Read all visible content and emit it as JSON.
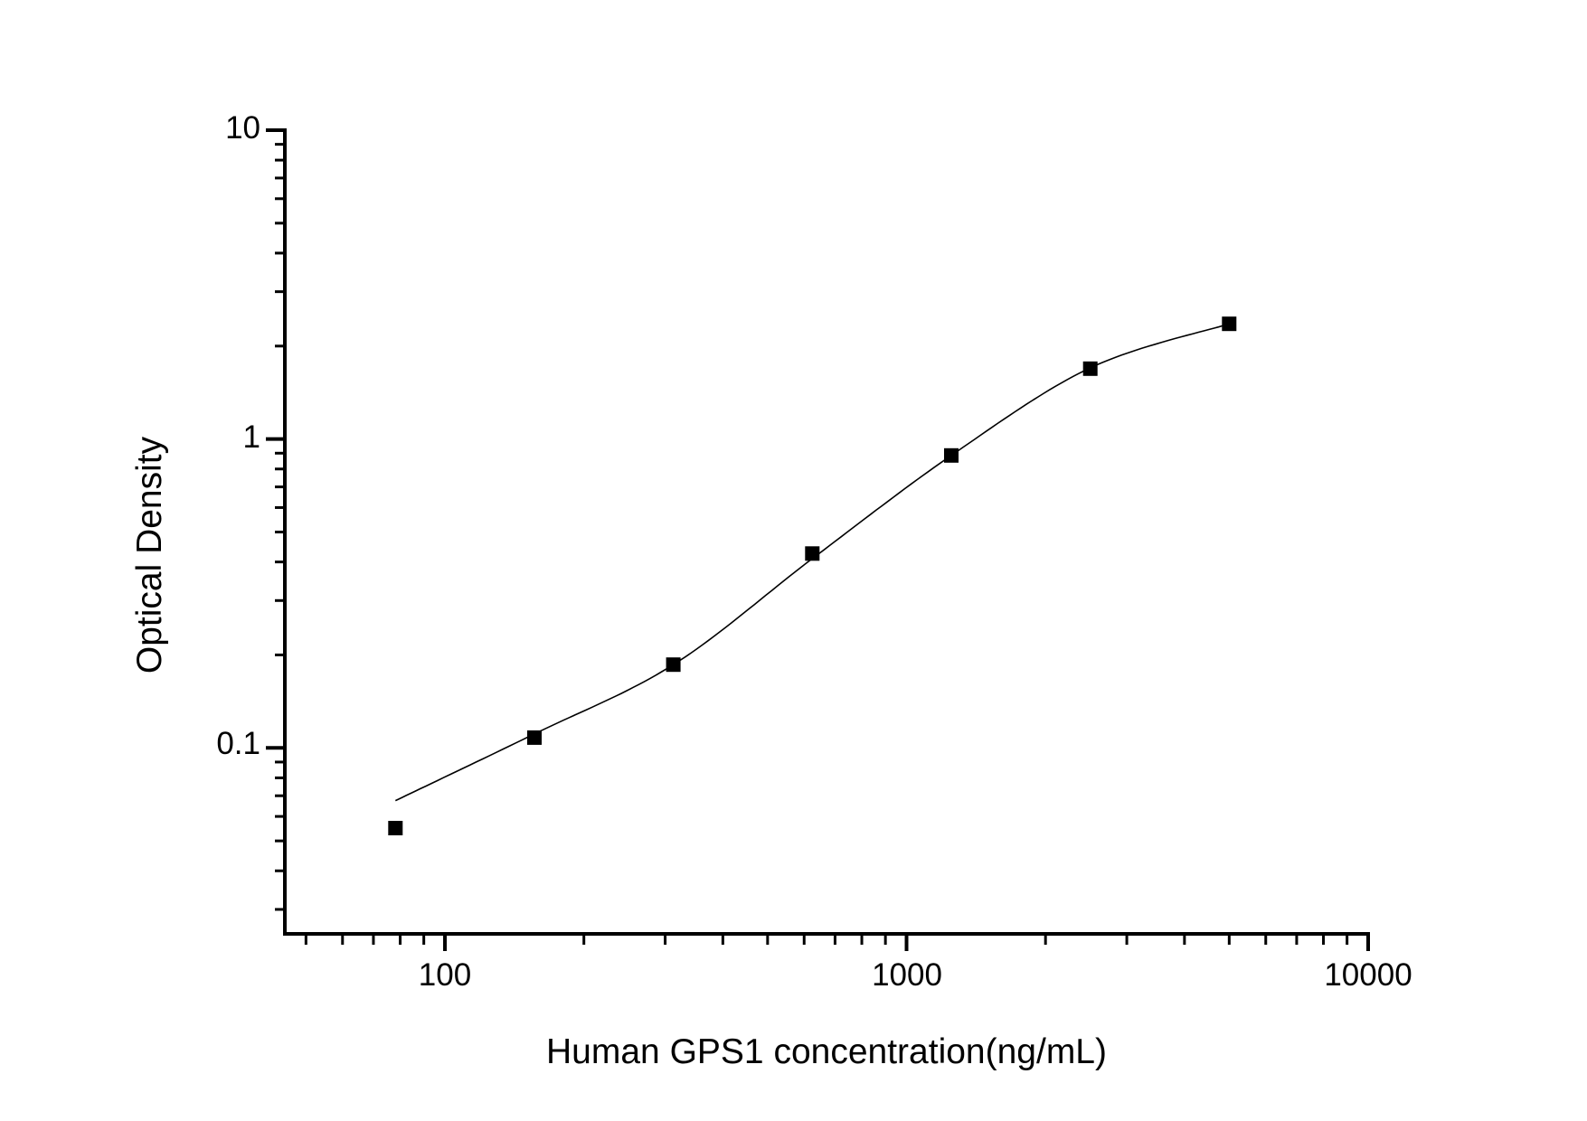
{
  "figure": {
    "background": "#ffffff",
    "foreground": "#000000"
  },
  "chart_data": {
    "type": "scatter",
    "title": "",
    "xlabel": "Human GPS1 concentration(ng/mL)",
    "ylabel": "Optical Density",
    "x_scale": "log",
    "y_scale": "log",
    "xlim": [
      45,
      10000
    ],
    "ylim": [
      0.025,
      10
    ],
    "grid": false,
    "legend": false,
    "x_ticks": {
      "major": [
        100,
        1000,
        10000
      ],
      "labels": [
        "100",
        "1000",
        "10000"
      ],
      "minor": [
        50,
        60,
        70,
        80,
        90,
        200,
        300,
        400,
        500,
        600,
        700,
        800,
        900,
        2000,
        3000,
        4000,
        5000,
        6000,
        7000,
        8000,
        9000
      ]
    },
    "y_ticks": {
      "major": [
        10,
        1,
        0.1
      ],
      "labels": [
        "10",
        "1",
        "0.1"
      ],
      "minor": [
        9,
        8,
        7,
        6,
        5,
        4,
        3,
        2,
        0.9,
        0.8,
        0.7,
        0.6,
        0.5,
        0.4,
        0.3,
        0.2,
        0.09,
        0.08,
        0.07,
        0.06,
        0.05,
        0.04,
        0.03
      ]
    },
    "series": [
      {
        "name": "standard-points",
        "type": "scatter",
        "marker": "filled-square",
        "marker_size": 16,
        "color": "#000000",
        "x": [
          78.125,
          156.25,
          312.5,
          625,
          1250,
          2500,
          5000
        ],
        "y": [
          0.055,
          0.108,
          0.186,
          0.426,
          0.885,
          1.69,
          2.36
        ]
      },
      {
        "name": "fitted-curve",
        "type": "line",
        "color": "#000000",
        "x": [
          78.125,
          156.25,
          312.5,
          625,
          1250,
          2500,
          5000
        ],
        "y": [
          0.0675,
          0.111,
          0.186,
          0.41,
          0.885,
          1.7,
          2.36
        ]
      }
    ]
  }
}
